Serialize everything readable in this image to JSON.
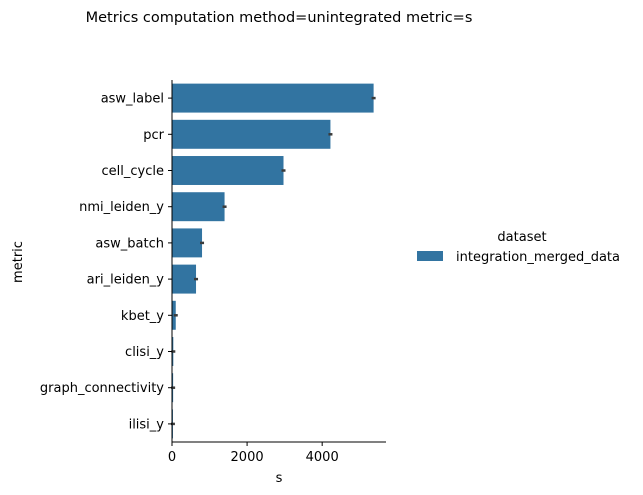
{
  "chart_data": {
    "type": "bar",
    "orientation": "horizontal",
    "title": "Metrics computation method=unintegrated metric=s",
    "xlabel": "s",
    "ylabel": "metric",
    "xlim": [
      0,
      5700
    ],
    "xticks": [
      0,
      2000,
      4000
    ],
    "grid": false,
    "legend_position": "right",
    "legend_title": "dataset",
    "categories": [
      "asw_label",
      "pcr",
      "cell_cycle",
      "nmi_leiden_y",
      "asw_batch",
      "ari_leiden_y",
      "kbet_y",
      "clisi_y",
      "graph_connectivity",
      "ilisi_y"
    ],
    "series": [
      {
        "name": "integration_merged_data",
        "color": "#3274a1",
        "values": [
          5370,
          4220,
          2970,
          1400,
          800,
          640,
          100,
          35,
          30,
          25
        ]
      }
    ]
  }
}
